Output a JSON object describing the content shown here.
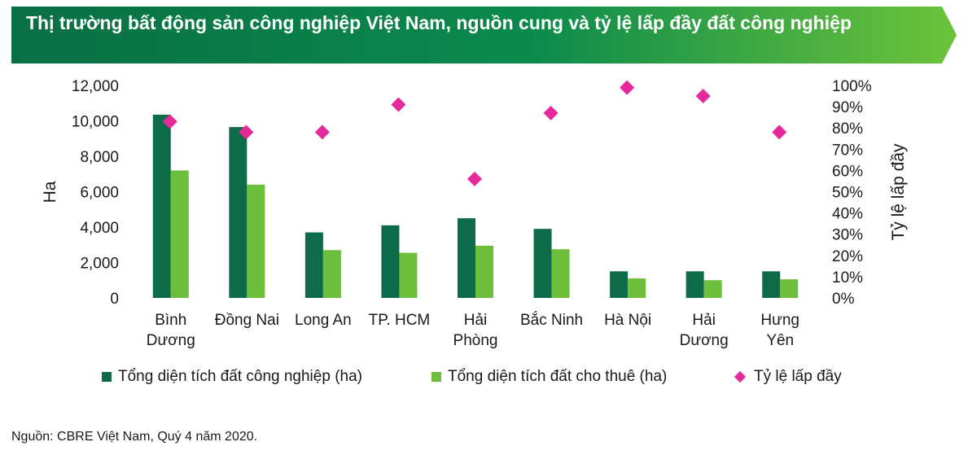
{
  "header": {
    "title": "Thị trường bất động sản công nghiệp Việt Nam, nguồn cung và tỷ lệ lấp đầy đất công nghiệp"
  },
  "colors": {
    "banner_start": "#0a6f45",
    "banner_end": "#6cc33a",
    "total_area": "#0d6b4a",
    "leased_area": "#6dbe3b",
    "occupancy": "#e5289a"
  },
  "chart_data": {
    "type": "bar",
    "categories": [
      [
        "Bình",
        "Dương"
      ],
      [
        "Đồng Nai"
      ],
      [
        "Long An"
      ],
      [
        "TP. HCM"
      ],
      [
        "Hải",
        "Phòng"
      ],
      [
        "Bắc Ninh"
      ],
      [
        "Hà Nội"
      ],
      [
        "Hải",
        "Dương"
      ],
      [
        "Hưng",
        "Yên"
      ]
    ],
    "series": [
      {
        "name": "Tổng diện tích đất công nghiệp (ha)",
        "type": "bar",
        "axis": "left",
        "values": [
          10350,
          9650,
          3700,
          4100,
          4500,
          3900,
          1500,
          1500,
          1500
        ]
      },
      {
        "name": "Tổng diện tích đất cho thuê (ha)",
        "type": "bar",
        "axis": "left",
        "values": [
          7200,
          6400,
          2700,
          2550,
          2950,
          2750,
          1100,
          1000,
          1050
        ]
      },
      {
        "name": "Tỷ lệ lấp đầy",
        "type": "scatter",
        "axis": "right",
        "values": [
          83,
          78,
          78,
          91,
          56,
          87,
          99,
          95,
          78
        ]
      }
    ],
    "ylabel": "Ha",
    "y2label": "Tỷ lệ lấp đầy",
    "ylim": [
      0,
      12000
    ],
    "y2lim": [
      0,
      100
    ],
    "yticks": [
      "0",
      "2,000",
      "4,000",
      "6,000",
      "8,000",
      "10,000",
      "12,000"
    ],
    "y2ticks": [
      "0%",
      "10%",
      "20%",
      "30%",
      "40%",
      "50%",
      "60%",
      "70%",
      "80%",
      "90%",
      "100%"
    ],
    "grid": false,
    "legend_position": "bottom"
  },
  "source": "Nguồn: CBRE Việt Nam, Quý 4 năm 2020."
}
